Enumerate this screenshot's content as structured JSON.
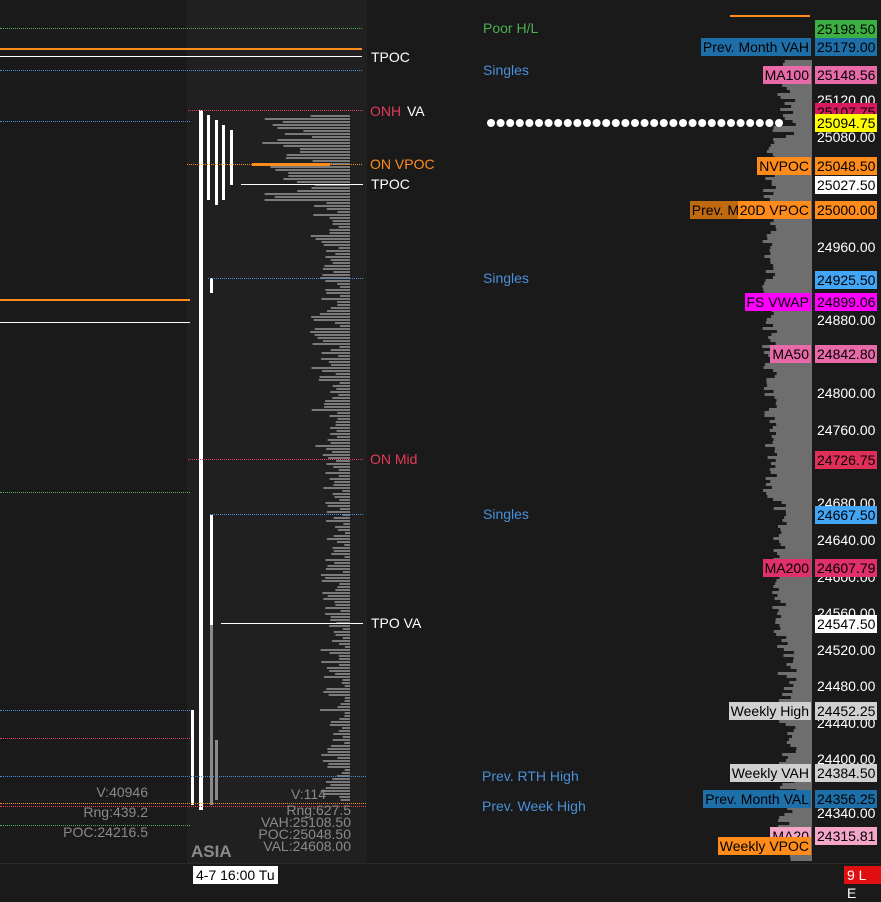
{
  "session_label": "ASIA",
  "time_label": "4-7  16:00 Tu",
  "corner_label": "9 L E",
  "axis_ticks": [
    "25120.00",
    "25080.00",
    "24960.00",
    "24880.00",
    "24800.00",
    "24760.00",
    "24680.00",
    "24640.00",
    "24600.00",
    "24560.00",
    "24520.00",
    "24480.00",
    "24440.00",
    "24400.00",
    "24340.00"
  ],
  "price_tags": [
    {
      "text": "25198.50",
      "bg": "#3cb043",
      "fg": "#000000"
    },
    {
      "text": "25179.00",
      "bg": "#1e6fa8",
      "fg": "#000000"
    },
    {
      "text": "25148.56",
      "bg": "#e86aa8",
      "fg": "#000000"
    },
    {
      "text": "25107.75",
      "bg": "#d81b60",
      "fg": "#000000"
    },
    {
      "text": "25094.75",
      "bg": "#ffff00",
      "fg": "#000000"
    },
    {
      "text": "25048.50",
      "bg": "#ff8c1a",
      "fg": "#000000"
    },
    {
      "text": "25027.50",
      "bg": "#ffffff",
      "fg": "#000000"
    },
    {
      "text": "25000.00",
      "bg": "#ff8c1a",
      "fg": "#000000"
    },
    {
      "text": "24925.50",
      "bg": "#42a5f5",
      "fg": "#000000"
    },
    {
      "text": "24899.06",
      "bg": "#ff00ff",
      "fg": "#000000"
    },
    {
      "text": "24842.80",
      "bg": "#e86aa8",
      "fg": "#000000"
    },
    {
      "text": "24726.75",
      "bg": "#e0305a",
      "fg": "#000000"
    },
    {
      "text": "24667.50",
      "bg": "#42a5f5",
      "fg": "#000000"
    },
    {
      "text": "24607.79",
      "bg": "#e0306a",
      "fg": "#000000"
    },
    {
      "text": "24547.50",
      "bg": "#ffffff",
      "fg": "#000000"
    },
    {
      "text": "24452.25",
      "bg": "#d0d0d0",
      "fg": "#000000"
    },
    {
      "text": "24384.50",
      "bg": "#d0d0d0",
      "fg": "#000000"
    },
    {
      "text": "24356.25",
      "bg": "#1e6fa8",
      "fg": "#000000"
    },
    {
      "text": "24315.81",
      "bg": "#f4a6c8",
      "fg": "#000000"
    }
  ],
  "left_tags": [
    {
      "text": "Prev. Month VAH",
      "bg": "#1e6fa8",
      "fg": "#000000"
    },
    {
      "text": "MA100",
      "bg": "#e86aa8",
      "fg": "#000000"
    },
    {
      "text": "NVPOC",
      "bg": "#ff8c1a",
      "fg": "#000000"
    },
    {
      "text": "Prev. M",
      "bg": "#c06a10",
      "fg": "#000000"
    },
    {
      "text": "20D VPOC",
      "bg": "#ff8c1a",
      "fg": "#000000"
    },
    {
      "text": "FS VWAP",
      "bg": "#ff00ff",
      "fg": "#000000"
    },
    {
      "text": "MA50",
      "bg": "#e86aa8",
      "fg": "#000000"
    },
    {
      "text": "MA200",
      "bg": "#e0306a",
      "fg": "#000000"
    },
    {
      "text": "Weekly High",
      "bg": "#d0d0d0",
      "fg": "#000000"
    },
    {
      "text": "Weekly VAH",
      "bg": "#d0d0d0",
      "fg": "#000000"
    },
    {
      "text": "Prev. Month VAL",
      "bg": "#1e6fa8",
      "fg": "#000000"
    },
    {
      "text": "MA20",
      "bg": "#f4a6c8",
      "fg": "#000000"
    },
    {
      "text": "Weekly VPOC",
      "bg": "#ff8c1a",
      "fg": "#000000"
    }
  ],
  "labels": {
    "poor_hl": "Poor H/L",
    "singles": "Singles",
    "prev_rth_high": "Prev. RTH High",
    "prev_week_high": "Prev. Week High",
    "tpoc": "TPOC",
    "onh": "ONH",
    "va": "VA",
    "on_vpoc": "ON VPOC",
    "on_mid": "ON Mid",
    "tpo_va": "TPO VA"
  },
  "left_stats": {
    "v": "V:40946",
    "rng": "Rng:439.2",
    "poc": "POC:24216.5"
  },
  "right_stats": {
    "v": "V:114",
    "rng": "Rng:627.5",
    "vah": "VAH:25108.50",
    "poc": "POC:25048.50",
    "val": "VAL:24608.00"
  },
  "colors": {
    "background": "#1a1a1a",
    "session_bg": "#202020",
    "green": "#4caf50",
    "blue": "#4a90d9",
    "orange": "#ff8c1a",
    "red": "#e03c5a",
    "axis_bg": "#5a5a5a"
  }
}
